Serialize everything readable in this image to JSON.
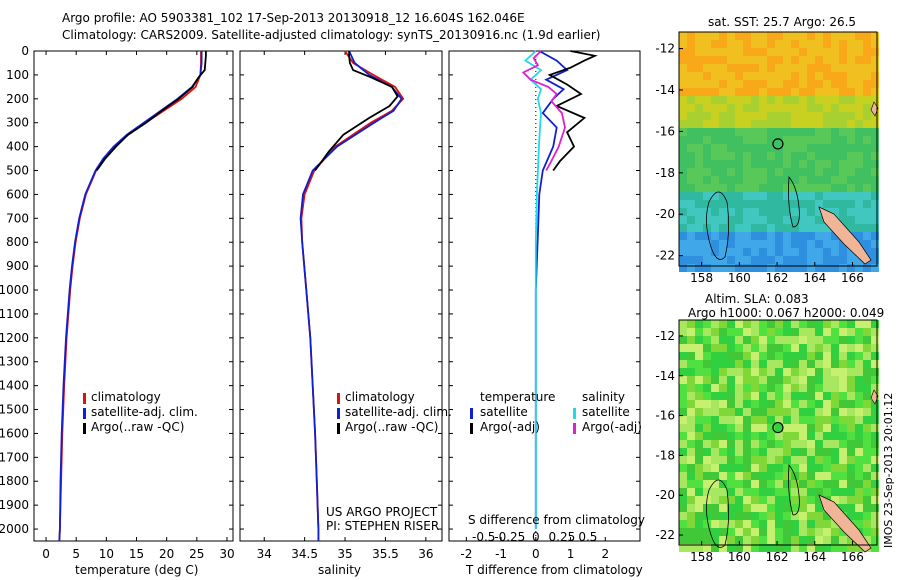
{
  "title_line1": "Argo profile: AO 5903381_102 17-Sep-2013 20130918_12 16.604S 162.046E",
  "title_line2": "Climatology: CARS2009. Satellite-adjusted climatology: synTS_20130916.nc (1.9d earlier)",
  "colors": {
    "climatology": "#e01010",
    "satellite": "#1020d0",
    "argo": "#000000",
    "sat_s": "#20d8e8",
    "argo_s": "#e020d0"
  },
  "depth_ticks": [
    "0",
    "100",
    "200",
    "300",
    "400",
    "500",
    "600",
    "700",
    "800",
    "900",
    "1000",
    "1100",
    "1200",
    "1300",
    "1400",
    "1500",
    "1600",
    "1700",
    "1800",
    "1900",
    "2000"
  ],
  "temp_panel": {
    "xlabel": "temperature (deg C)",
    "xticks": [
      "0",
      "5",
      "10",
      "15",
      "20",
      "25",
      "30"
    ],
    "legend": [
      "climatology",
      "satellite-adj. clim.",
      "Argo(..raw -QC)"
    ]
  },
  "sal_panel": {
    "xlabel": "salinity",
    "xticks": [
      "34",
      "34.5",
      "35",
      "35.5",
      "36"
    ],
    "legend": [
      "climatology",
      "satellite-adj. clim.",
      "Argo(..raw -QC)"
    ],
    "note1": "US ARGO PROJECT",
    "note2": "PI: STEPHEN RISER"
  },
  "diff_panel": {
    "xlabel": "T difference from climatology",
    "xlabel_top": "S difference from climatology",
    "xticks": [
      "-2",
      "-1",
      "0",
      "1",
      "2"
    ],
    "sticks": [
      "-0.5",
      "-0.25",
      "0",
      "0.25",
      "0.5"
    ],
    "legend_t_head": "temperature",
    "legend_s_head": "salinity",
    "legend_t": [
      "satellite",
      "Argo(-adj)"
    ],
    "legend_s": [
      "satellite",
      "Argo(-adj)"
    ]
  },
  "map_sst": {
    "title": "sat. SST: 25.7  Argo: 26.5",
    "yticks": [
      "-12",
      "-14",
      "-16",
      "-18",
      "-20",
      "-22"
    ],
    "xticks": [
      "158",
      "160",
      "162",
      "164",
      "166"
    ]
  },
  "map_sla": {
    "title1": "Altim. SLA: 0.083",
    "title2": "Argo h1000: 0.067  h2000: 0.049",
    "yticks": [
      "-12",
      "-14",
      "-16",
      "-18",
      "-20",
      "-22"
    ],
    "xticks": [
      "158",
      "160",
      "162",
      "164",
      "166"
    ]
  },
  "stamp": "IMOS 23-Sep-2013 20:01:12",
  "chart_data": [
    {
      "type": "line",
      "xlabel": "temperature (deg C)",
      "ylabel": "",
      "xlim": [
        -2,
        31
      ],
      "ylim": [
        2050,
        0
      ],
      "series": [
        {
          "name": "climatology",
          "depth": [
            0,
            50,
            100,
            150,
            200,
            250,
            300,
            350,
            400,
            450,
            500,
            600,
            700,
            800,
            900,
            1000,
            1200,
            1400,
            1600,
            1800,
            2000,
            2050
          ],
          "values": [
            25.7,
            25.7,
            25.6,
            24.8,
            22.5,
            19.5,
            16.5,
            13.6,
            11.4,
            9.6,
            8.3,
            6.6,
            5.6,
            4.9,
            4.4,
            4.0,
            3.4,
            3.0,
            2.7,
            2.5,
            2.3,
            2.2
          ]
        },
        {
          "name": "satellite-adj. clim.",
          "depth": [
            0,
            50,
            100,
            150,
            200,
            250,
            300,
            350,
            400,
            450,
            500,
            600,
            700,
            800,
            900,
            1000,
            1200,
            1400,
            1600,
            1800,
            2000,
            2050
          ],
          "values": [
            25.8,
            25.8,
            25.6,
            24.2,
            21.8,
            19.0,
            16.2,
            13.4,
            11.2,
            9.5,
            8.2,
            6.5,
            5.5,
            4.8,
            4.3,
            3.9,
            3.3,
            2.9,
            2.6,
            2.4,
            2.3,
            2.2
          ]
        },
        {
          "name": "Argo(..raw -QC)",
          "depth": [
            0,
            20,
            50,
            80,
            110,
            150,
            200,
            250,
            300,
            350,
            400,
            450,
            500
          ],
          "values": [
            26.5,
            26.5,
            26.4,
            26.3,
            25.3,
            24.3,
            22.0,
            19.2,
            16.6,
            13.6,
            11.6,
            9.8,
            8.4
          ]
        }
      ]
    },
    {
      "type": "line",
      "xlabel": "salinity",
      "ylabel": "",
      "xlim": [
        33.7,
        36.2
      ],
      "ylim": [
        2050,
        0
      ],
      "series": [
        {
          "name": "climatology",
          "depth": [
            0,
            50,
            100,
            150,
            200,
            250,
            300,
            400,
            500,
            600,
            700,
            800,
            1000,
            1200,
            1400,
            1600,
            1800,
            2000,
            2050
          ],
          "values": [
            35.0,
            35.1,
            35.35,
            35.62,
            35.72,
            35.58,
            35.32,
            34.88,
            34.62,
            34.5,
            34.46,
            34.47,
            34.52,
            34.57,
            34.6,
            34.63,
            34.65,
            34.67,
            34.67
          ]
        },
        {
          "name": "satellite-adj. clim.",
          "depth": [
            0,
            50,
            100,
            150,
            200,
            250,
            300,
            400,
            500,
            600,
            700,
            800,
            1000,
            1200,
            1400,
            1600,
            1800,
            2000,
            2050
          ],
          "values": [
            35.05,
            35.12,
            35.3,
            35.58,
            35.7,
            35.6,
            35.36,
            34.9,
            34.6,
            34.48,
            34.45,
            34.47,
            34.52,
            34.57,
            34.6,
            34.63,
            34.65,
            34.67,
            34.67
          ]
        },
        {
          "name": "Argo(..raw -QC)",
          "depth": [
            0,
            20,
            50,
            80,
            110,
            150,
            190,
            230,
            280,
            350,
            420,
            500
          ],
          "values": [
            35.05,
            35.05,
            35.06,
            35.1,
            35.32,
            35.58,
            35.65,
            35.55,
            35.3,
            34.98,
            34.8,
            34.63
          ]
        }
      ]
    },
    {
      "type": "line",
      "xlabel": "T difference from climatology",
      "ylabel": "",
      "xlim": [
        -2.5,
        3
      ],
      "ylim": [
        2050,
        0
      ],
      "series": [
        {
          "name": "temperature satellite",
          "depth": [
            0,
            40,
            80,
            120,
            160,
            200,
            260,
            320,
            400,
            500,
            600,
            800,
            1000,
            1200,
            1500,
            1800,
            2000
          ],
          "values": [
            0.1,
            0.6,
            0.9,
            0.3,
            0.8,
            0.5,
            0.2,
            0.6,
            0.5,
            0.2,
            0.1,
            0.05,
            0.0,
            0.0,
            0.0,
            0.0,
            0.0
          ]
        },
        {
          "name": "temperature Argo(-adj)",
          "depth": [
            0,
            20,
            40,
            70,
            100,
            140,
            180,
            230,
            280,
            340,
            400,
            460,
            500
          ],
          "values": [
            1.0,
            1.7,
            1.4,
            1.0,
            0.4,
            0.9,
            1.3,
            0.6,
            1.4,
            0.9,
            1.1,
            0.7,
            0.5
          ]
        },
        {
          "name": "salinity satellite",
          "depth": [
            0,
            40,
            80,
            120,
            160,
            200,
            260,
            320,
            400,
            500,
            600,
            800,
            1000,
            1500,
            2000
          ],
          "values": [
            0.0,
            -0.1,
            0.05,
            -0.05,
            0.05,
            0.02,
            0.05,
            0.04,
            0.03,
            0.02,
            0.01,
            0.0,
            0.0,
            0.0,
            0.0
          ]
        },
        {
          "name": "salinity Argo(-adj)",
          "depth": [
            0,
            30,
            60,
            90,
            120,
            150,
            180,
            210,
            260,
            320,
            400,
            460,
            500
          ],
          "values": [
            0.05,
            -0.02,
            0.02,
            -0.12,
            -0.05,
            0.12,
            0.2,
            0.15,
            0.25,
            0.28,
            0.22,
            0.15,
            0.1
          ]
        }
      ]
    }
  ]
}
